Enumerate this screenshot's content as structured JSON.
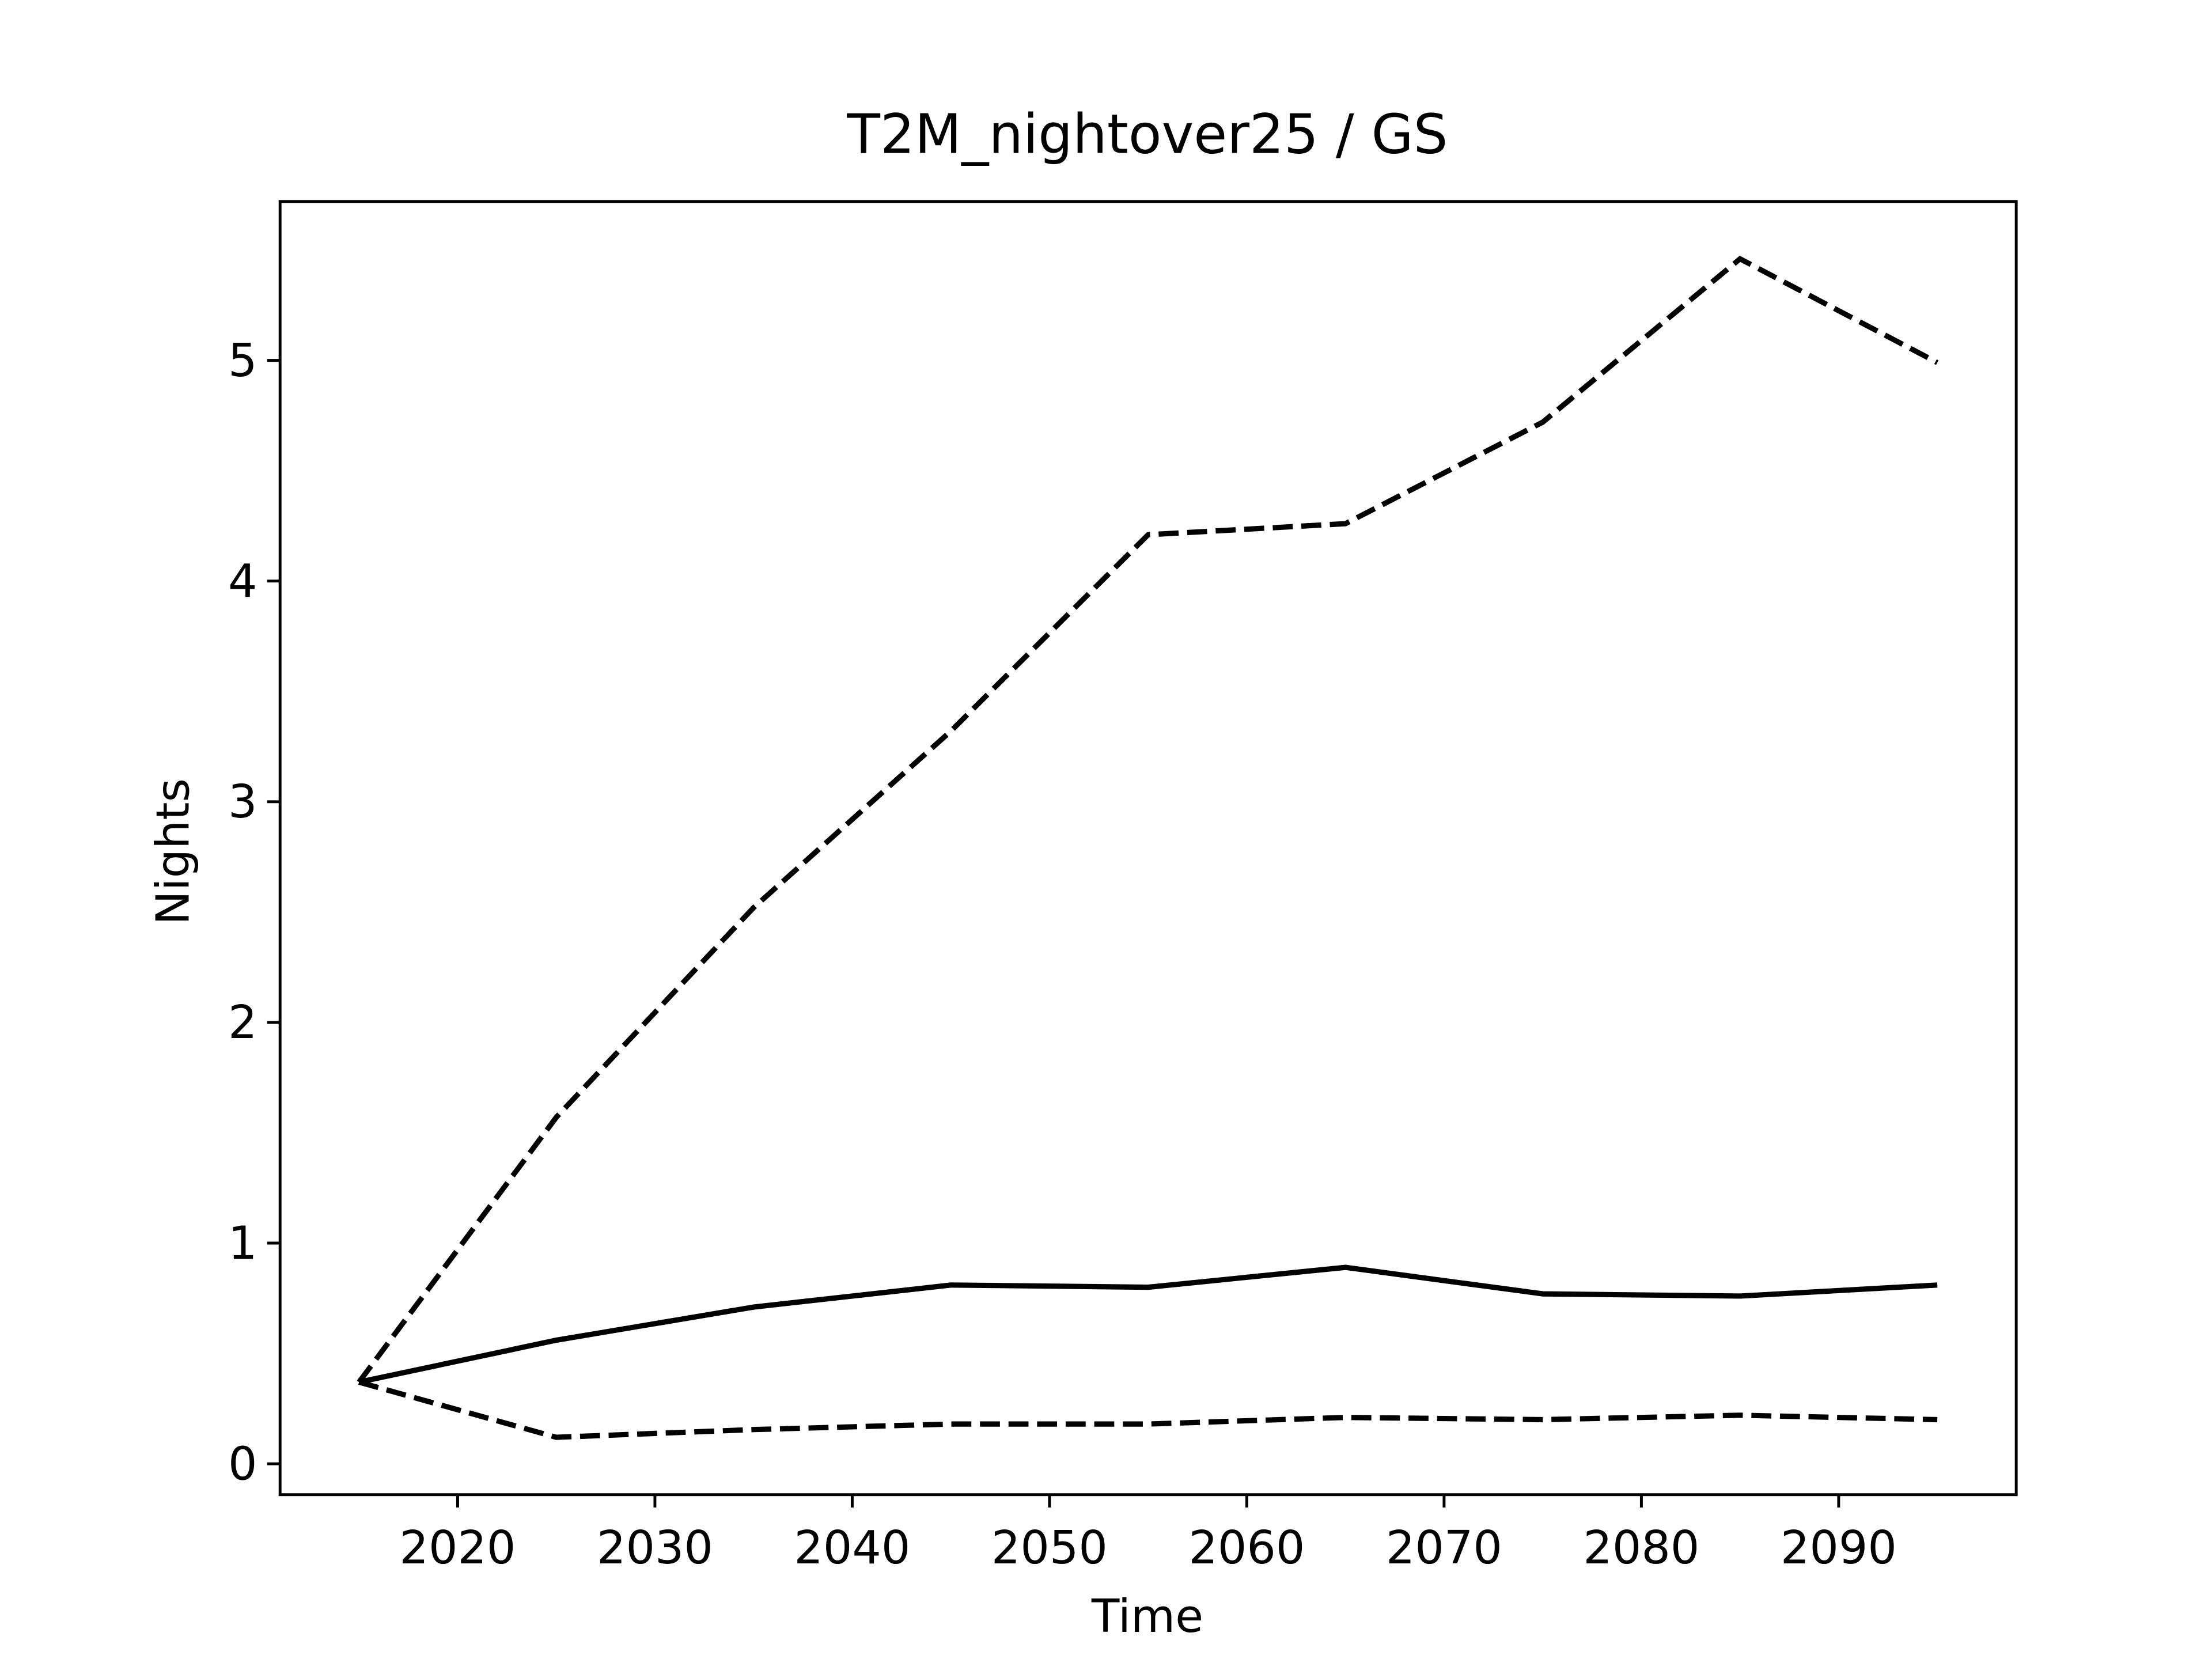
{
  "chart_data": {
    "type": "line",
    "title": "T2M_nightover25 / GS",
    "x_label": "Time",
    "y_label": "Nights",
    "x": [
      2015,
      2025,
      2035,
      2045,
      2055,
      2065,
      2075,
      2085,
      2095
    ],
    "series": [
      {
        "color": "#000000",
        "style": "dashed",
        "values": [
          0.37,
          1.57,
          2.52,
          3.32,
          4.21,
          4.26,
          4.72,
          5.46,
          4.99
        ]
      },
      {
        "color": "#000000",
        "style": "solid",
        "values": [
          0.37,
          0.56,
          0.71,
          0.81,
          0.8,
          0.89,
          0.77,
          0.76,
          0.81
        ]
      },
      {
        "color": "#000000",
        "style": "dashed",
        "values": [
          0.37,
          0.12,
          0.155,
          0.18,
          0.18,
          0.21,
          0.2,
          0.22,
          0.2
        ]
      }
    ],
    "xlim": [
      2011,
      2099
    ],
    "xticks": [
      2020,
      2030,
      2040,
      2050,
      2060,
      2070,
      2080,
      2090
    ],
    "ylim": [
      -0.14,
      5.72
    ],
    "yticks": [
      0,
      1,
      2,
      3,
      4,
      5
    ],
    "grid": false
  }
}
